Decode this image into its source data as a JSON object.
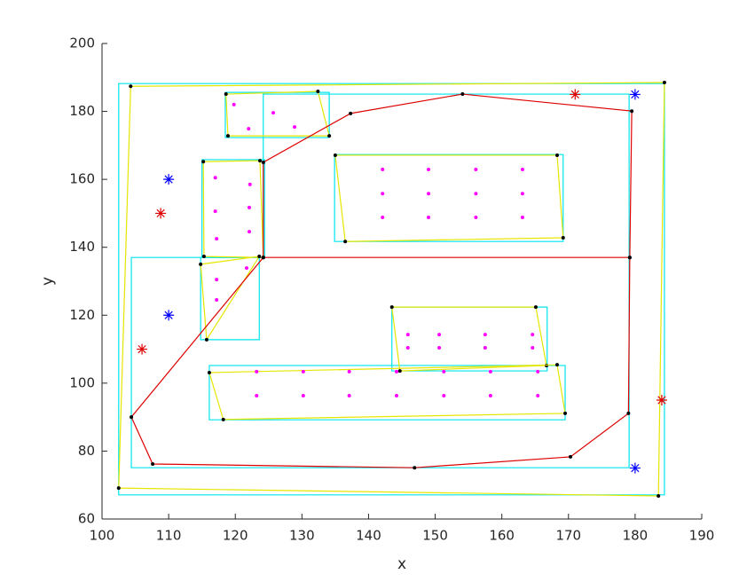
{
  "chart_data": {
    "type": "scatter",
    "xlabel": "x",
    "ylabel": "y",
    "xlim": [
      100,
      190
    ],
    "ylim": [
      60,
      200
    ],
    "xticks": [
      100,
      110,
      120,
      130,
      140,
      150,
      160,
      170,
      180,
      190
    ],
    "yticks": [
      60,
      80,
      100,
      120,
      140,
      160,
      180,
      200
    ],
    "series": [
      {
        "color": "#00e5ee",
        "closed": true,
        "x": [
          102.5,
          184.4,
          184.4,
          102.5
        ],
        "y": [
          188.2,
          188.2,
          67.1,
          67.1
        ]
      },
      {
        "color": "#00e5ee",
        "closed": true,
        "x": [
          104.4,
          124.2,
          124.2,
          179.1,
          179.1,
          104.4
        ],
        "y": [
          137.0,
          137.0,
          185.1,
          185.1,
          75.1,
          75.1
        ]
      },
      {
        "color": "#00e5ee",
        "closed": true,
        "x": [
          118.5,
          134.1,
          134.1,
          118.5
        ],
        "y": [
          185.6,
          185.6,
          172.3,
          172.3
        ]
      },
      {
        "color": "#00e5ee",
        "closed": true,
        "x": [
          134.9,
          169.2,
          169.2,
          134.9
        ],
        "y": [
          167.3,
          167.3,
          141.7,
          141.7
        ]
      },
      {
        "color": "#00e5ee",
        "closed": true,
        "x": [
          115.0,
          124.4,
          124.4,
          115.0
        ],
        "y": [
          165.8,
          165.8,
          137.0,
          137.0
        ]
      },
      {
        "color": "#00e5ee",
        "closed": true,
        "x": [
          114.8,
          123.6,
          123.6,
          114.8
        ],
        "y": [
          137.0,
          137.0,
          112.8,
          112.8
        ]
      },
      {
        "color": "#00e5ee",
        "closed": true,
        "x": [
          143.5,
          166.8,
          166.8,
          143.5
        ],
        "y": [
          122.4,
          122.4,
          103.6,
          103.6
        ]
      },
      {
        "color": "#00e5ee",
        "closed": true,
        "x": [
          116.1,
          169.5,
          169.5,
          116.1
        ],
        "y": [
          105.2,
          105.2,
          89.2,
          89.2
        ]
      },
      {
        "color": "#e6e600",
        "closed": true,
        "vertex_color": "#000000",
        "x": [
          104.3,
          184.4,
          183.5,
          102.5
        ],
        "y": [
          187.4,
          188.5,
          66.8,
          69.1
        ]
      },
      {
        "color": "#e6e600",
        "closed": true,
        "vertex_color": "#000000",
        "x": [
          118.6,
          132.4,
          134.1,
          118.9
        ],
        "y": [
          185.1,
          185.9,
          172.8,
          172.8
        ]
      },
      {
        "color": "#e6e600",
        "closed": true,
        "vertex_color": "#000000",
        "x": [
          135.0,
          168.3,
          169.2,
          136.5
        ],
        "y": [
          167.1,
          167.1,
          142.8,
          141.7
        ]
      },
      {
        "color": "#e6e600",
        "closed": true,
        "vertex_color": "#000000",
        "x": [
          115.2,
          123.7,
          124.2,
          115.3
        ],
        "y": [
          165.2,
          165.5,
          137.0,
          137.3
        ]
      },
      {
        "color": "#e6e600",
        "closed": true,
        "vertex_color": "#000000",
        "x": [
          114.8,
          123.6,
          115.7
        ],
        "y": [
          135.0,
          137.3,
          112.8
        ]
      },
      {
        "color": "#e6e600",
        "closed": true,
        "vertex_color": "#000000",
        "x": [
          143.5,
          165.1,
          166.7,
          144.7
        ],
        "y": [
          122.4,
          122.4,
          105.2,
          103.6
        ]
      },
      {
        "color": "#e6e600",
        "closed": true,
        "vertex_color": "#000000",
        "x": [
          116.1,
          168.3,
          169.5,
          118.2
        ],
        "y": [
          103.1,
          105.4,
          91.1,
          89.3
        ]
      },
      {
        "color": "#dd0000",
        "closed": false,
        "vertex_color": "#000000",
        "x": [
          124.2,
          124.2,
          137.3,
          154.1,
          179.5,
          179.2,
          179.0,
          170.3,
          146.9,
          107.6,
          104.4,
          124.2,
          179.2
        ],
        "y": [
          137.0,
          165.0,
          179.4,
          185.1,
          180.1,
          137.0,
          91.1,
          78.3,
          75.1,
          76.2,
          90.0,
          137.0,
          137.0
        ]
      },
      {
        "color": "#ff00ff",
        "marker": "dot",
        "x": [
          119.8,
          122.0,
          125.7,
          128.9,
          142.1,
          149.0,
          156.1,
          163.1,
          142.1,
          149.0,
          156.1,
          163.1,
          142.1,
          149.0,
          156.1,
          163.1,
          117.0,
          122.2,
          117.0,
          122.1,
          117.2,
          122.1,
          121.7,
          117.2,
          117.2,
          145.9,
          150.6,
          157.5,
          164.6,
          145.9,
          150.6,
          157.5,
          164.6,
          123.2,
          130.2,
          137.1,
          144.2,
          151.3,
          158.3,
          165.4,
          123.2,
          130.2,
          137.1,
          144.2,
          151.3,
          158.3,
          165.4
        ],
        "y": [
          182.0,
          174.9,
          179.6,
          175.4,
          162.9,
          162.9,
          162.9,
          162.9,
          155.8,
          155.8,
          155.8,
          155.8,
          148.8,
          148.8,
          148.8,
          148.8,
          160.5,
          158.5,
          150.6,
          151.7,
          142.5,
          144.6,
          133.9,
          130.5,
          124.5,
          114.3,
          114.3,
          114.3,
          114.3,
          110.4,
          110.4,
          110.4,
          110.4,
          103.4,
          103.4,
          103.4,
          103.4,
          103.4,
          103.4,
          103.4,
          96.3,
          96.3,
          96.3,
          96.3,
          96.3,
          96.3,
          96.3
        ]
      },
      {
        "color": "#0000ff",
        "marker": "star",
        "x": [
          110,
          110,
          180,
          180
        ],
        "y": [
          160,
          120,
          185,
          75
        ]
      },
      {
        "color": "#dd0000",
        "marker": "star",
        "x": [
          108.8,
          106,
          171,
          184
        ],
        "y": [
          150,
          110,
          185,
          95
        ]
      }
    ]
  }
}
